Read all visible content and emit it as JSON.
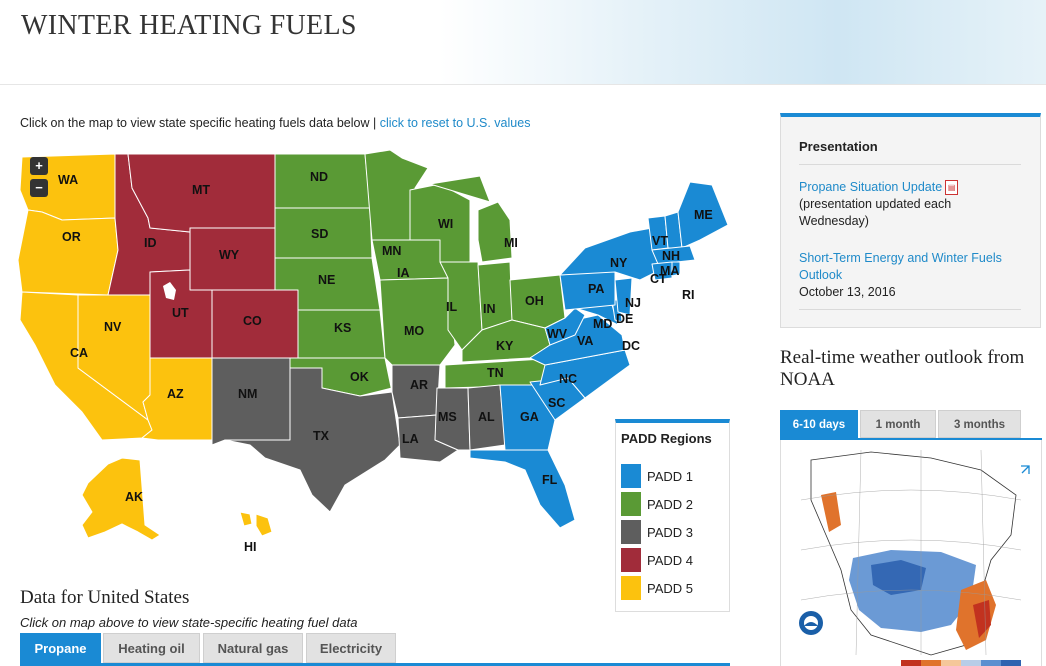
{
  "header": {
    "title": "WINTER HEATING FUELS"
  },
  "intro": {
    "text": "Click on the map to view state specific heating fuels data below | ",
    "link": "click to reset to U.S. values"
  },
  "map": {
    "zoom_in": "+",
    "zoom_out": "−",
    "region_colors": {
      "PADD 1": "#1a8ad4",
      "PADD 2": "#5a9a35",
      "PADD 3": "#5e5e5e",
      "PADD 4": "#a12c3a",
      "PADD 5": "#fcc20e"
    },
    "states": [
      "WA",
      "OR",
      "CA",
      "NV",
      "ID",
      "MT",
      "WY",
      "UT",
      "CO",
      "AZ",
      "NM",
      "ND",
      "SD",
      "NE",
      "KS",
      "OK",
      "TX",
      "MN",
      "IA",
      "MO",
      "AR",
      "LA",
      "WI",
      "IL",
      "MI",
      "IN",
      "OH",
      "KY",
      "TN",
      "MS",
      "AL",
      "GA",
      "FL",
      "SC",
      "NC",
      "VA",
      "WV",
      "PA",
      "NY",
      "VT",
      "NH",
      "ME",
      "MA",
      "CT",
      "RI",
      "NJ",
      "DE",
      "MD",
      "DC",
      "AK",
      "HI"
    ]
  },
  "legend": {
    "title": "PADD Regions",
    "items": [
      {
        "label": "PADD 1",
        "color": "#1a8ad4"
      },
      {
        "label": "PADD 2",
        "color": "#5a9a35"
      },
      {
        "label": "PADD 3",
        "color": "#5e5e5e"
      },
      {
        "label": "PADD 4",
        "color": "#a12c3a"
      },
      {
        "label": "PADD 5",
        "color": "#fcc20e"
      }
    ]
  },
  "data_section": {
    "title": "Data for United States",
    "subtitle": "Click on map above to view state-specific heating fuel data",
    "tabs": [
      "Propane",
      "Heating oil",
      "Natural gas",
      "Electricity"
    ],
    "active_tab": "Propane"
  },
  "presentation": {
    "title": "Presentation",
    "item1_link": "Propane Situation Update",
    "item1_note": "(presentation updated each Wednesday)",
    "item2_link": "Short-Term Energy and Winter Fuels Outlook",
    "item2_date": "October 13, 2016"
  },
  "weather": {
    "title": "Real-time weather outlook from NOAA",
    "tabs": [
      "6-10 days",
      "1 month",
      "3 months"
    ],
    "active_tab": "6-10 days",
    "colors": {
      "accent": "#1a8ad4"
    }
  }
}
